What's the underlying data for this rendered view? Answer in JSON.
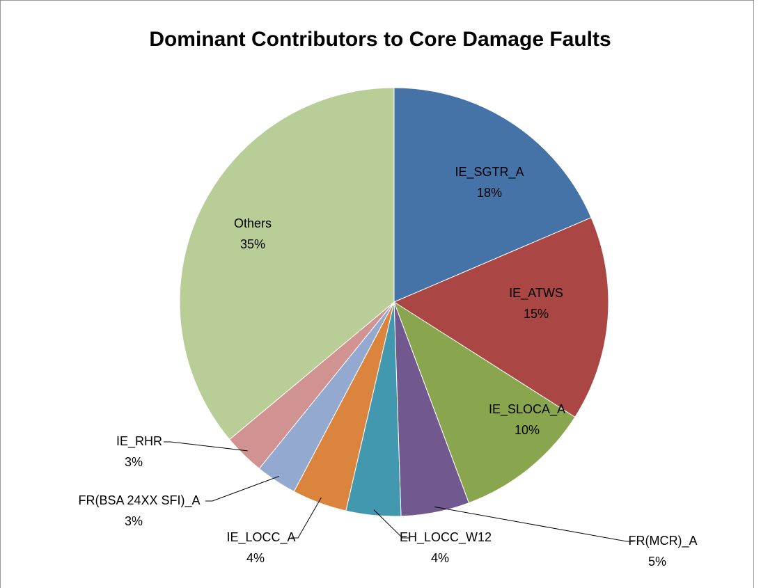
{
  "chart_data": {
    "type": "pie",
    "title": "Dominant Contributors to Core Damage Faults",
    "categories": [
      "IE_SGTR_A",
      "IE_ATWS",
      "IE_SLOCA_A",
      "FR(MCR)_A",
      "EH_LOCC_W12",
      "IE_LOCC_A",
      "FR(BSA 24XX SFI)_A",
      "IE_RHR",
      "Others"
    ],
    "values": [
      18,
      15,
      10,
      5,
      4,
      4,
      3,
      3,
      35
    ],
    "value_labels": [
      "18%",
      "15%",
      "10%",
      "5%",
      "4%",
      "4%",
      "3%",
      "3%",
      "35%"
    ],
    "colors": [
      "#4572a7",
      "#aa4643",
      "#89a54e",
      "#71588f",
      "#4198af",
      "#db843d",
      "#93a9cf",
      "#d19392",
      "#b9cd96"
    ]
  }
}
